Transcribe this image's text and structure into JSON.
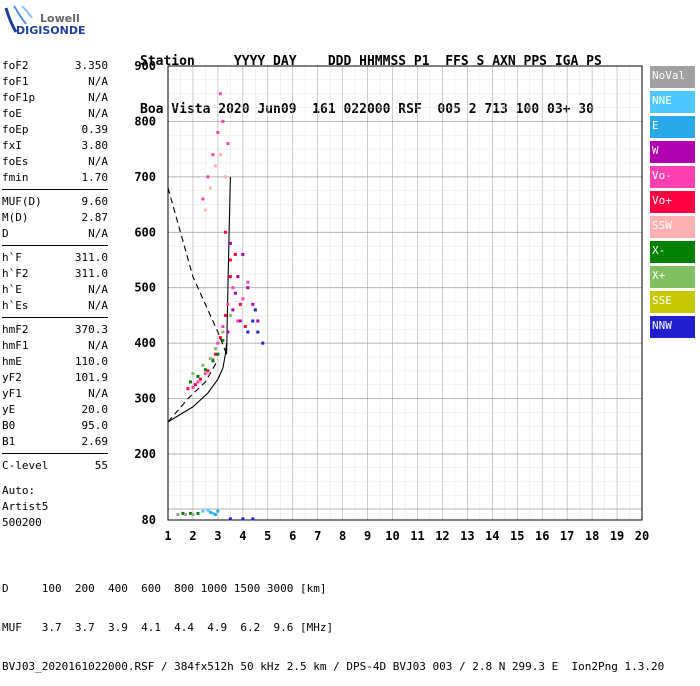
{
  "logo": {
    "line1": "Lowell",
    "line2": "DIGISONDE"
  },
  "header": {
    "line1": "Station     YYYY DAY    DDD HHMMSS P1  FFS S AXN PPS IGA PS",
    "line2": "Boa Vista 2020 Jun09  161 022000 RSF  005 2 713 100 03+ 30"
  },
  "params_group1": [
    {
      "k": "foF2",
      "v": "3.350"
    },
    {
      "k": "foF1",
      "v": "N/A"
    },
    {
      "k": "foF1p",
      "v": "N/A"
    },
    {
      "k": "foE",
      "v": "N/A"
    },
    {
      "k": "foEp",
      "v": "0.39"
    },
    {
      "k": "fxI",
      "v": "3.80"
    },
    {
      "k": "foEs",
      "v": "N/A"
    },
    {
      "k": "fmin",
      "v": "1.70"
    }
  ],
  "params_group2": [
    {
      "k": "MUF(D)",
      "v": "9.60"
    },
    {
      "k": "M(D)",
      "v": "2.87"
    },
    {
      "k": "D",
      "v": "N/A"
    }
  ],
  "params_group3": [
    {
      "k": "h`F",
      "v": "311.0"
    },
    {
      "k": "h`F2",
      "v": "311.0"
    },
    {
      "k": "h`E",
      "v": "N/A"
    },
    {
      "k": "h`Es",
      "v": "N/A"
    }
  ],
  "params_group4": [
    {
      "k": "hmF2",
      "v": "370.3"
    },
    {
      "k": "hmF1",
      "v": "N/A"
    },
    {
      "k": "hmE",
      "v": "110.0"
    },
    {
      "k": "yF2",
      "v": "101.9"
    },
    {
      "k": "yF1",
      "v": "N/A"
    },
    {
      "k": "yE",
      "v": "20.0"
    },
    {
      "k": "B0",
      "v": "95.0"
    },
    {
      "k": "B1",
      "v": "2.69"
    }
  ],
  "params_group5": [
    {
      "k": "C-level",
      "v": "55"
    }
  ],
  "auto": {
    "line1": "Auto:",
    "line2": "Artist5",
    "line3": "500200"
  },
  "legend": [
    {
      "label": "NoVal",
      "color": "#a0a0a0"
    },
    {
      "label": "NNE",
      "color": "#4fc8ff"
    },
    {
      "label": "E",
      "color": "#28a8e8"
    },
    {
      "label": "W",
      "color": "#b000b0"
    },
    {
      "label": "Vo-",
      "color": "#ff40b0"
    },
    {
      "label": "Vo+",
      "color": "#ff0040"
    },
    {
      "label": "SSW",
      "color": "#ffb0b0"
    },
    {
      "label": "X-",
      "color": "#008000"
    },
    {
      "label": "X+",
      "color": "#80c060"
    },
    {
      "label": "SSE",
      "color": "#c8c800"
    },
    {
      "label": "NNW",
      "color": "#2020d0"
    }
  ],
  "footer": {
    "line1": "D     100  200  400  600  800 1000 1500 3000 [km]",
    "line2": "MUF   3.7  3.7  3.9  4.1  4.4  4.9  6.2  9.6 [MHz]",
    "line3": "BVJ03_2020161022000.RSF / 384fx512h 50 kHz 2.5 km / DPS-4D BVJ03 003 / 2.8 N 299.3 E  Ion2Png 1.3.20"
  },
  "chart_data": {
    "type": "scatter",
    "title": "",
    "xlabel": "",
    "ylabel": "",
    "xlim": [
      1,
      20
    ],
    "ylim": [
      80,
      900
    ],
    "x_ticks": [
      1,
      2,
      3,
      4,
      5,
      6,
      7,
      8,
      9,
      10,
      11,
      12,
      13,
      14,
      15,
      16,
      17,
      18,
      19,
      20
    ],
    "y_ticks": [
      80,
      200,
      300,
      400,
      500,
      600,
      700,
      800,
      900
    ],
    "series": [
      {
        "name": "Vo-",
        "color": "#ff40b0",
        "values": [
          [
            2.0,
            320
          ],
          [
            2.2,
            330
          ],
          [
            2.5,
            345
          ],
          [
            2.8,
            370
          ],
          [
            3.0,
            400
          ],
          [
            3.2,
            430
          ],
          [
            3.4,
            470
          ],
          [
            3.6,
            500
          ],
          [
            3.8,
            440
          ],
          [
            4.0,
            480
          ],
          [
            4.2,
            510
          ],
          [
            2.4,
            660
          ],
          [
            2.6,
            700
          ],
          [
            2.8,
            740
          ],
          [
            3.0,
            780
          ],
          [
            3.2,
            800
          ],
          [
            3.4,
            760
          ],
          [
            3.1,
            850
          ]
        ]
      },
      {
        "name": "Vo+",
        "color": "#ff0040",
        "values": [
          [
            1.8,
            318
          ],
          [
            2.1,
            325
          ],
          [
            2.3,
            335
          ],
          [
            2.6,
            350
          ],
          [
            2.9,
            380
          ],
          [
            3.1,
            410
          ],
          [
            3.3,
            450
          ],
          [
            3.5,
            520
          ],
          [
            3.7,
            560
          ],
          [
            3.9,
            470
          ],
          [
            4.1,
            430
          ],
          [
            3.3,
            600
          ],
          [
            3.5,
            550
          ]
        ]
      },
      {
        "name": "W",
        "color": "#b000b0",
        "values": [
          [
            3.4,
            420
          ],
          [
            3.6,
            460
          ],
          [
            3.8,
            520
          ],
          [
            4.0,
            560
          ],
          [
            4.2,
            500
          ],
          [
            4.4,
            470
          ],
          [
            4.6,
            440
          ],
          [
            3.5,
            580
          ],
          [
            3.7,
            490
          ],
          [
            3.9,
            440
          ]
        ]
      },
      {
        "name": "X-",
        "color": "#008000",
        "values": [
          [
            1.9,
            330
          ],
          [
            2.2,
            340
          ],
          [
            2.5,
            352
          ],
          [
            2.8,
            368
          ],
          [
            3.0,
            380
          ],
          [
            3.2,
            405
          ],
          [
            1.6,
            92
          ],
          [
            1.9,
            92
          ],
          [
            2.2,
            92
          ]
        ]
      },
      {
        "name": "X+",
        "color": "#80c060",
        "values": [
          [
            2.0,
            345
          ],
          [
            2.4,
            360
          ],
          [
            2.7,
            372
          ],
          [
            2.9,
            390
          ],
          [
            3.2,
            420
          ],
          [
            3.5,
            450
          ]
        ]
      },
      {
        "name": "NNW",
        "color": "#2020d0",
        "values": [
          [
            4.2,
            420
          ],
          [
            4.4,
            440
          ],
          [
            4.6,
            420
          ],
          [
            4.8,
            400
          ],
          [
            4.5,
            460
          ],
          [
            3.5,
            82
          ],
          [
            4.0,
            82
          ],
          [
            4.4,
            82
          ]
        ]
      },
      {
        "name": "SSW",
        "color": "#ffb0b0",
        "values": [
          [
            2.5,
            640
          ],
          [
            2.7,
            680
          ],
          [
            2.9,
            720
          ],
          [
            3.1,
            740
          ],
          [
            3.3,
            700
          ],
          [
            2.3,
            330
          ],
          [
            2.6,
            345
          ]
        ]
      },
      {
        "name": "NNE",
        "color": "#4fc8ff",
        "values": [
          [
            2.4,
            96
          ],
          [
            2.6,
            98
          ],
          [
            2.8,
            92
          ]
        ]
      },
      {
        "name": "E",
        "color": "#28a8e8",
        "values": [
          [
            2.7,
            94
          ],
          [
            2.9,
            90
          ],
          [
            3.0,
            96
          ]
        ]
      },
      {
        "name": "NoVal",
        "color": "#a0a0a0",
        "values": [
          [
            1.4,
            90
          ],
          [
            1.7,
            90
          ],
          [
            2.0,
            90
          ]
        ]
      }
    ],
    "curves": [
      {
        "style": "solid",
        "values": [
          [
            1,
            258
          ],
          [
            2,
            285
          ],
          [
            2.6,
            310
          ],
          [
            3.0,
            335
          ],
          [
            3.2,
            355
          ],
          [
            3.3,
            380
          ],
          [
            3.35,
            400
          ]
        ]
      },
      {
        "style": "dashed",
        "values": [
          [
            1.0,
            680
          ],
          [
            1.5,
            600
          ],
          [
            2.0,
            520
          ],
          [
            2.5,
            470
          ],
          [
            3.0,
            420
          ],
          [
            3.35,
            380
          ]
        ]
      },
      {
        "style": "dashed",
        "values": [
          [
            1.0,
            258
          ],
          [
            1.8,
            300
          ],
          [
            2.5,
            330
          ],
          [
            3.0,
            370
          ]
        ]
      },
      {
        "style": "solid",
        "values": [
          [
            3.35,
            380
          ],
          [
            3.4,
            500
          ],
          [
            3.45,
            600
          ],
          [
            3.5,
            700
          ]
        ]
      }
    ]
  }
}
